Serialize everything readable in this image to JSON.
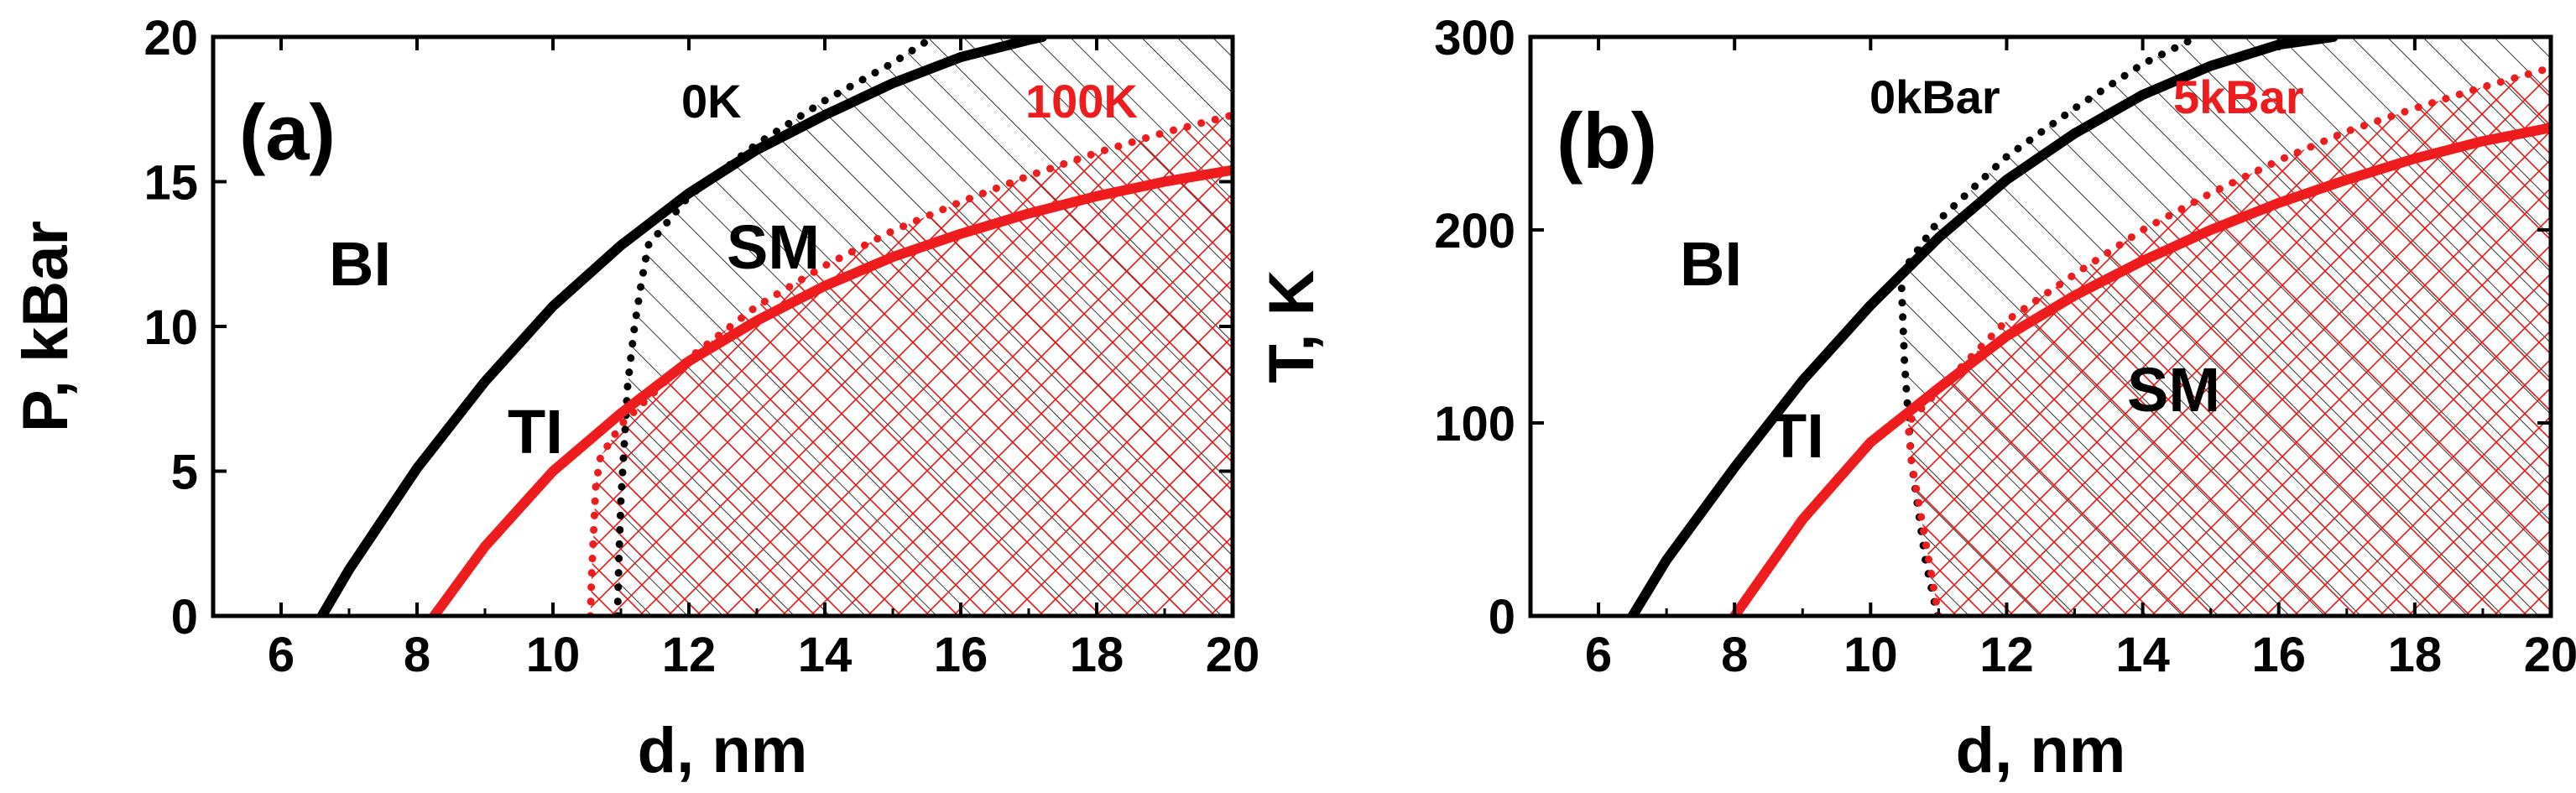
{
  "chart_data": [
    {
      "type": "line",
      "panel_label": "(a)",
      "xlabel": "d, nm",
      "ylabel": "P, kBar",
      "xlim": [
        5,
        20
      ],
      "ylim": [
        0,
        20
      ],
      "xticks": [
        6,
        8,
        10,
        12,
        14,
        16,
        18,
        20
      ],
      "yticks": [
        0,
        5,
        10,
        15,
        20
      ],
      "region_labels": [
        "BI",
        "TI",
        "SM"
      ],
      "series": [
        {
          "name": "0K",
          "role": "BI-TI boundary",
          "style": "solid",
          "color": "#000000",
          "x": [
            6.6,
            7,
            8,
            9,
            10,
            11,
            12,
            13,
            14,
            15,
            16,
            17,
            17.2
          ],
          "y": [
            0,
            1.6,
            5.1,
            8.1,
            10.7,
            12.8,
            14.6,
            16.1,
            17.3,
            18.4,
            19.3,
            19.9,
            20
          ]
        },
        {
          "name": "0K",
          "role": "TI-SM boundary",
          "style": "dotted",
          "color": "#000000",
          "x": [
            10.95,
            10.97,
            11.0,
            11.05,
            11.1,
            11.2,
            11.3,
            11.4,
            12,
            13,
            14,
            15,
            15.6
          ],
          "y": [
            0,
            2,
            4,
            6,
            8,
            10,
            11.5,
            12.8,
            14.5,
            16.3,
            17.8,
            19.1,
            20
          ]
        },
        {
          "name": "100K",
          "role": "BI-TI boundary",
          "style": "solid",
          "color": "#ee1c1c",
          "x": [
            8.25,
            9,
            10,
            11,
            12,
            13,
            14,
            15,
            16,
            17,
            18,
            19,
            20
          ],
          "y": [
            0,
            2.4,
            5,
            7,
            8.8,
            10.2,
            11.4,
            12.4,
            13.2,
            13.9,
            14.5,
            15.0,
            15.4
          ]
        },
        {
          "name": "100K",
          "role": "TI-SM boundary",
          "style": "dotted",
          "color": "#ee1c1c",
          "x": [
            10.55,
            10.57,
            10.6,
            10.63,
            10.7,
            11,
            12,
            13,
            14,
            15,
            16,
            17,
            18,
            19,
            20
          ],
          "y": [
            0,
            1.5,
            3,
            4.5,
            5.5,
            6.6,
            8.9,
            10.7,
            12.1,
            13.3,
            14.3,
            15.2,
            16.0,
            16.7,
            17.3
          ]
        }
      ]
    },
    {
      "type": "line",
      "panel_label": "(b)",
      "xlabel": "d, nm",
      "ylabel": "T, K",
      "xlim": [
        5,
        20
      ],
      "ylim": [
        0,
        300
      ],
      "xticks": [
        6,
        8,
        10,
        12,
        14,
        16,
        18,
        20
      ],
      "yticks": [
        0,
        100,
        200,
        300
      ],
      "region_labels": [
        "BI",
        "TI",
        "SM"
      ],
      "series": [
        {
          "name": "0kBar",
          "role": "BI-TI boundary",
          "style": "solid",
          "color": "#000000",
          "x": [
            6.5,
            7,
            8,
            9,
            10,
            11,
            12,
            13,
            14,
            15,
            16,
            16.8
          ],
          "y": [
            0,
            29,
            77,
            122,
            161,
            196,
            226,
            250,
            270,
            285,
            296,
            300
          ]
        },
        {
          "name": "0kBar",
          "role": "TI-SM boundary",
          "style": "dotted",
          "color": "#000000",
          "x": [
            10.98,
            10.8,
            10.6,
            10.5,
            10.45,
            10.5,
            11,
            12,
            13,
            14,
            14.8
          ],
          "y": [
            0,
            30,
            80,
            130,
            175,
            180,
            205,
            238,
            263,
            286,
            300
          ]
        },
        {
          "name": "5kBar",
          "role": "BI-TI boundary",
          "style": "solid",
          "color": "#ee1c1c",
          "x": [
            8.0,
            9,
            10,
            11,
            12,
            13,
            14,
            15,
            16,
            17,
            18,
            19,
            20
          ],
          "y": [
            0,
            50,
            90,
            118,
            145,
            166,
            184,
            200,
            214,
            226,
            237,
            246,
            253
          ]
        },
        {
          "name": "5kBar",
          "role": "TI-SM boundary",
          "style": "dotted",
          "color": "#ee1c1c",
          "x": [
            11.0,
            10.8,
            10.6,
            10.55,
            11,
            12,
            13,
            14,
            15,
            16,
            17,
            18,
            19,
            20
          ],
          "y": [
            0,
            40,
            80,
            100,
            117,
            153,
            177,
            200,
            219,
            236,
            251,
            263,
            274,
            284
          ]
        }
      ]
    }
  ]
}
